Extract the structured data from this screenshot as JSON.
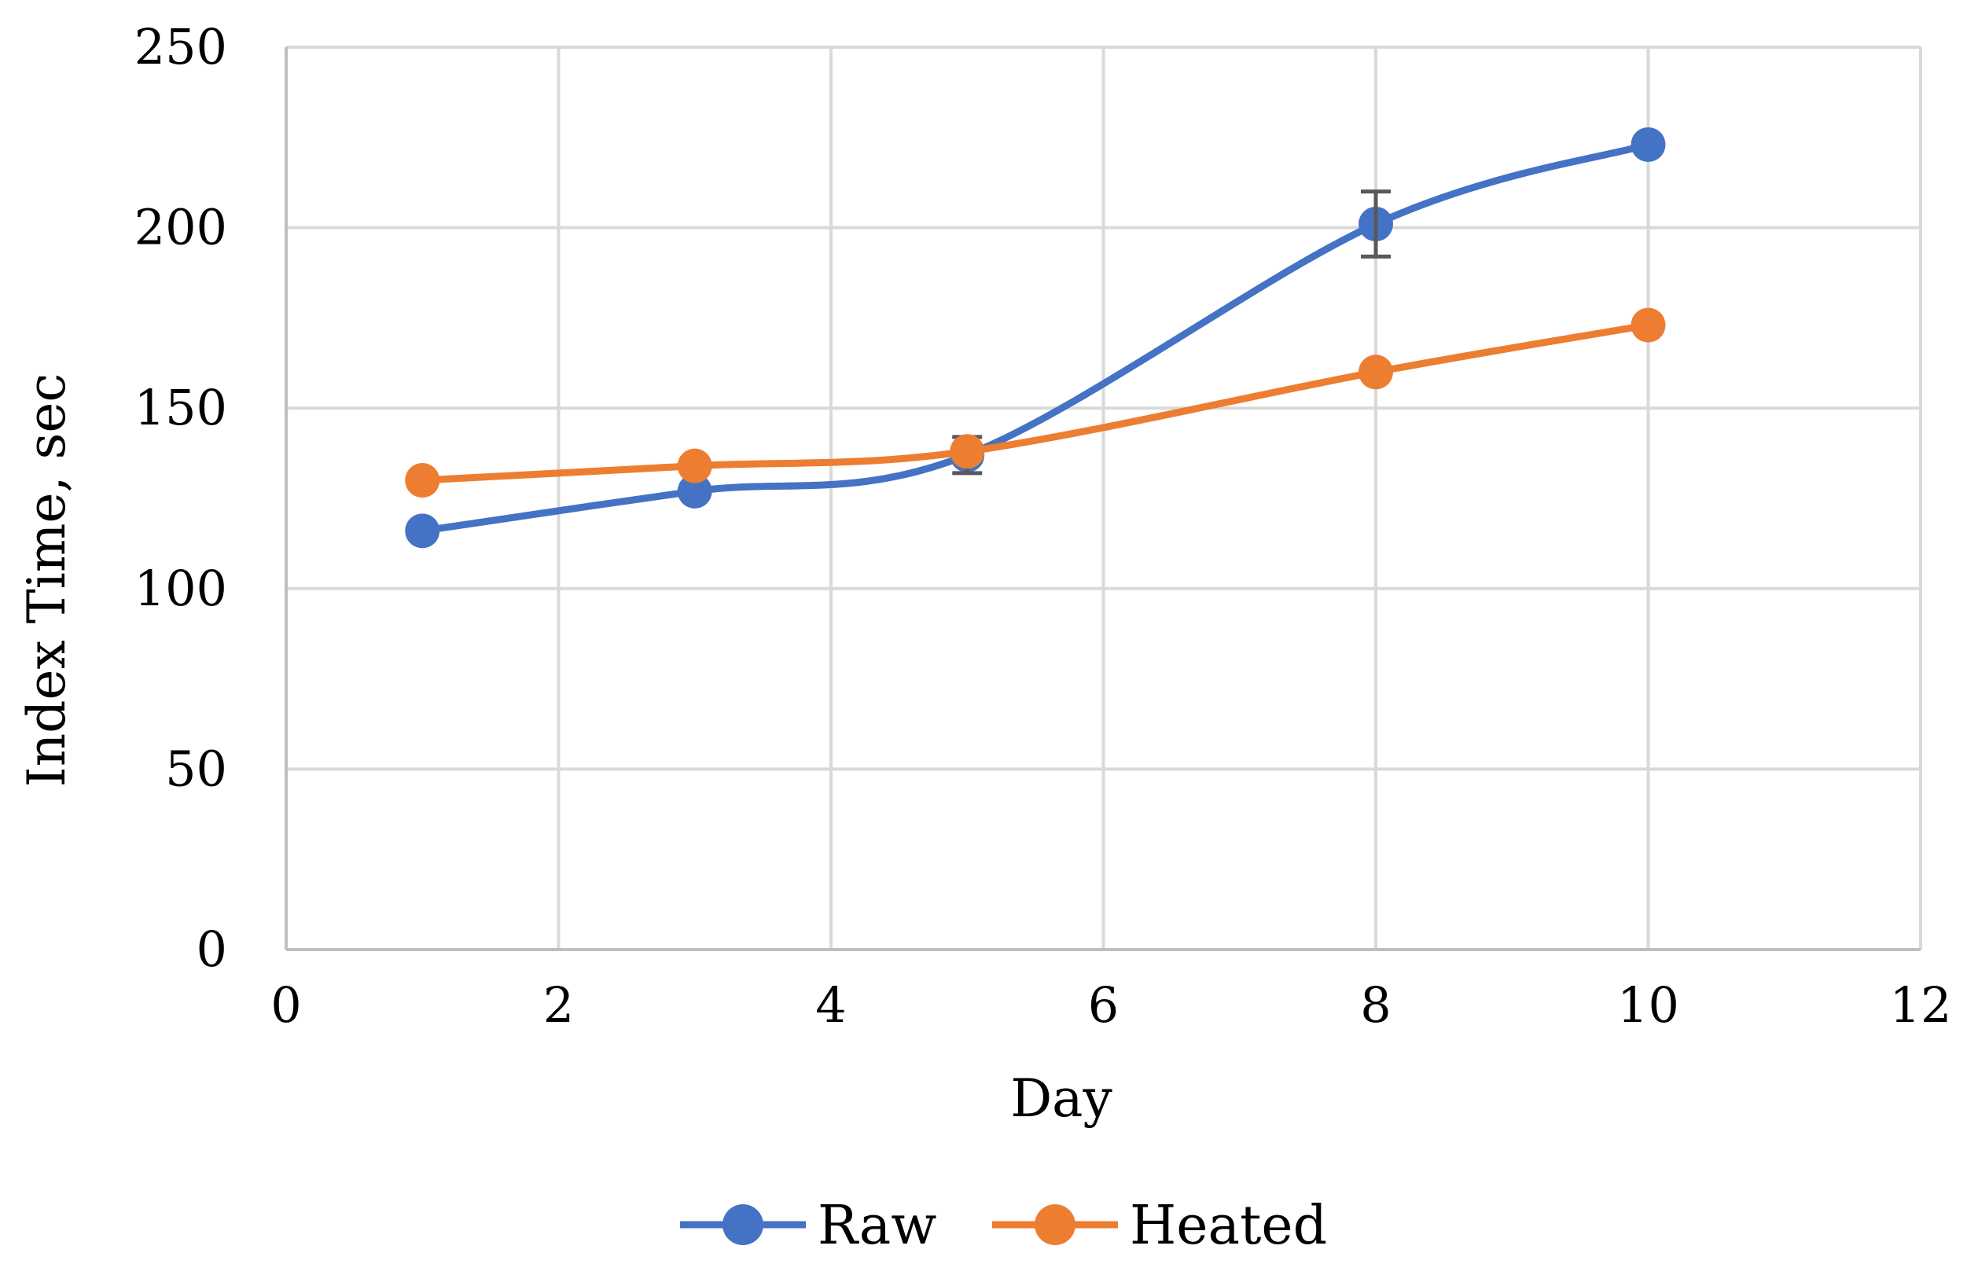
{
  "chart_data": {
    "type": "line",
    "title": "",
    "xlabel": "Day",
    "ylabel": "Index Time, sec",
    "xlim": [
      0,
      12
    ],
    "ylim": [
      0,
      250
    ],
    "xticks": [
      0,
      2,
      4,
      6,
      8,
      10,
      12
    ],
    "yticks": [
      0,
      50,
      100,
      150,
      200,
      250
    ],
    "grid": true,
    "legend_position": "bottom-center",
    "smooth": true,
    "series": [
      {
        "name": "Raw",
        "color": "#4472C4",
        "x": [
          1,
          3,
          5,
          8,
          10
        ],
        "y": [
          116,
          127,
          137,
          201,
          223
        ],
        "error": [
          null,
          null,
          5,
          9,
          null
        ]
      },
      {
        "name": "Heated",
        "color": "#ED7D31",
        "x": [
          1,
          3,
          5,
          8,
          10
        ],
        "y": [
          130,
          134,
          138,
          160,
          173
        ],
        "error": [
          null,
          null,
          null,
          null,
          null
        ]
      }
    ]
  }
}
